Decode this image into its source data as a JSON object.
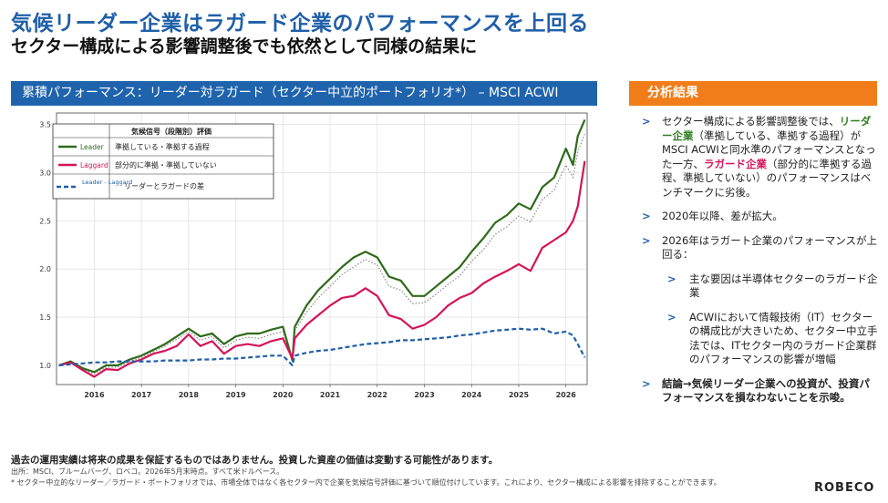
{
  "header": {
    "title": "気候リーダー企業はラガード企業のパフォーマンスを上回る",
    "subtitle": "セクター構成による影響調整後でも依然として同様の結果に"
  },
  "chart_panel": {
    "header": "累積パフォーマンス：リーダー対ラガード（セクター中立的ポートフォリオ*） – MSCI ACWI"
  },
  "legend": {
    "title": "気候信号（段階別）評価",
    "items": [
      {
        "key": "Leader",
        "desc": "準拠している・準拠する過程",
        "color": "#2e6b1a"
      },
      {
        "key": "Laggard",
        "desc": "部分的に準拠・準拠していない",
        "color": "#d4145a"
      },
      {
        "key": "Leader - Laggard",
        "desc": "リーダーとラガードの差",
        "color": "#1f5fa8"
      }
    ]
  },
  "chart_data": {
    "type": "line",
    "x": [
      2015.25,
      2015.5,
      2015.75,
      2016.0,
      2016.25,
      2016.5,
      2016.75,
      2017.0,
      2017.25,
      2017.5,
      2017.75,
      2018.0,
      2018.25,
      2018.5,
      2018.75,
      2019.0,
      2019.25,
      2019.5,
      2019.75,
      2020.0,
      2020.2,
      2020.25,
      2020.5,
      2020.75,
      2021.0,
      2021.25,
      2021.5,
      2021.75,
      2022.0,
      2022.25,
      2022.5,
      2022.75,
      2023.0,
      2023.25,
      2023.5,
      2023.75,
      2024.0,
      2024.25,
      2024.5,
      2024.75,
      2025.0,
      2025.25,
      2025.5,
      2025.75,
      2026.0,
      2026.15,
      2026.25,
      2026.4
    ],
    "series": [
      {
        "name": "Leader",
        "color": "#2e6b1a",
        "values": [
          1.0,
          1.04,
          0.97,
          0.93,
          1.0,
          1.0,
          1.06,
          1.1,
          1.16,
          1.22,
          1.3,
          1.38,
          1.3,
          1.33,
          1.22,
          1.3,
          1.33,
          1.33,
          1.37,
          1.4,
          1.05,
          1.4,
          1.62,
          1.78,
          1.9,
          2.02,
          2.12,
          2.18,
          2.12,
          1.92,
          1.88,
          1.72,
          1.72,
          1.82,
          1.92,
          2.02,
          2.18,
          2.32,
          2.48,
          2.56,
          2.68,
          2.62,
          2.85,
          2.95,
          3.25,
          3.08,
          3.38,
          3.55
        ]
      },
      {
        "name": "Laggard",
        "color": "#d4145a",
        "values": [
          1.0,
          1.03,
          0.95,
          0.88,
          0.96,
          0.95,
          1.02,
          1.06,
          1.12,
          1.15,
          1.2,
          1.32,
          1.2,
          1.25,
          1.12,
          1.2,
          1.22,
          1.2,
          1.25,
          1.28,
          1.07,
          1.28,
          1.42,
          1.52,
          1.62,
          1.7,
          1.72,
          1.8,
          1.72,
          1.52,
          1.48,
          1.38,
          1.42,
          1.5,
          1.62,
          1.7,
          1.75,
          1.85,
          1.92,
          1.98,
          2.05,
          1.98,
          2.22,
          2.3,
          2.38,
          2.5,
          2.65,
          3.12
        ]
      },
      {
        "name": "Leader - Laggard",
        "color": "#1f5fa8",
        "values": [
          1.0,
          1.01,
          1.02,
          1.03,
          1.03,
          1.04,
          1.04,
          1.04,
          1.04,
          1.05,
          1.05,
          1.05,
          1.06,
          1.06,
          1.07,
          1.07,
          1.08,
          1.09,
          1.1,
          1.1,
          1.0,
          1.1,
          1.13,
          1.15,
          1.16,
          1.18,
          1.2,
          1.22,
          1.23,
          1.24,
          1.26,
          1.26,
          1.27,
          1.28,
          1.29,
          1.31,
          1.32,
          1.34,
          1.36,
          1.37,
          1.38,
          1.37,
          1.38,
          1.33,
          1.35,
          1.31,
          1.22,
          1.08
        ]
      }
    ],
    "benchmark": {
      "values": [
        1.0,
        1.03,
        0.96,
        0.91,
        0.98,
        0.98,
        1.04,
        1.08,
        1.14,
        1.2,
        1.27,
        1.35,
        1.26,
        1.3,
        1.18,
        1.26,
        1.29,
        1.28,
        1.32,
        1.35,
        1.05,
        1.36,
        1.55,
        1.7,
        1.82,
        1.94,
        2.02,
        2.1,
        2.04,
        1.82,
        1.78,
        1.64,
        1.65,
        1.74,
        1.84,
        1.93,
        2.08,
        2.2,
        2.36,
        2.44,
        2.55,
        2.49,
        2.72,
        2.82,
        3.08,
        2.95,
        3.22,
        3.4
      ],
      "color": "#888888"
    },
    "xlim": [
      2015.2,
      2026.45
    ],
    "ylim": [
      0.8,
      3.62
    ],
    "xticks": [
      "2016",
      "2017",
      "2018",
      "2019",
      "2020",
      "2021",
      "2022",
      "2023",
      "2024",
      "2025",
      "2026"
    ],
    "xtick_values": [
      2016,
      2017,
      2018,
      2019,
      2020,
      2021,
      2022,
      2023,
      2024,
      2025,
      2026
    ],
    "yticks": [
      "1.0",
      "1.5",
      "2.0",
      "2.5",
      "3.0",
      "3.5"
    ],
    "ytick_values": [
      1.0,
      1.5,
      2.0,
      2.5,
      3.0,
      3.5
    ],
    "grid": true
  },
  "analysis": {
    "header": "分析結果",
    "b1_pre": "セクター構成による影響調整後では、",
    "b1_leader": "リーダー企業",
    "b1_mid": "（準拠している、準拠する過程）がMSCI ACWIと同水準のパフォーマンスとなった一方、",
    "b1_laggard": "ラガード企業",
    "b1_post": "（部分的に準拠する過程、準拠していない）のパフォーマンスはベンチマークに劣後。",
    "b2": "2020年以降、差が拡大。",
    "b3": "2026年はラガート企業のパフォーマンスが上回る：",
    "b4": "主な要因は半導体セクターのラガード企業",
    "b5": "ACWIにおいて情報技術（IT）セクターの構成比が大きいため、セクター中立手法では、ITセクター内のラガード企業群のパフォーマンスの影響が増幅",
    "b6": "結論→気候リーダー企業への投資が、投資パフォーマンスを損なわないことを示唆。",
    "gt": ">"
  },
  "footer": {
    "disclaimer": "過去の運用実績は将来の成果を保証するものではありません。投資した資産の価値は変動する可能性があります。",
    "source": "出所：MSCI、ブルームバーグ、ロベコ。2026年5月末時点。すべて米ドルベース。",
    "footnote": "* セクター中立的なリーダー／ラガード・ポートフォリオでは、市場全体ではなく各セクター内で企業を気候信号評価に基づいて順位付けしています。これにより、セクター構成による影響を排除することができます。",
    "logo": "ROBECO"
  }
}
